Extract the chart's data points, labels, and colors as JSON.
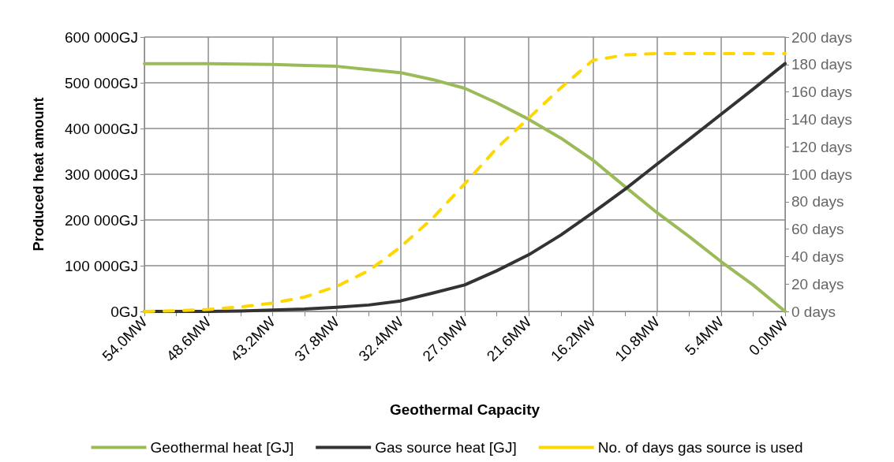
{
  "chart_data": {
    "type": "line",
    "xlabel": "Geothermal Capacity",
    "ylabel": "Produced heat amount",
    "categories": [
      "54.0MW",
      null,
      "48.6MW",
      null,
      "43.2MW",
      null,
      "37.8MW",
      null,
      "32.4MW",
      null,
      "27.0MW",
      null,
      "21.6MW",
      null,
      "16.2MW",
      null,
      "10.8MW",
      null,
      "5.4MW",
      null,
      "0.0MW"
    ],
    "series": [
      {
        "name": "Geothermal heat [GJ]",
        "color": "#9bbb59",
        "values": [
          542000,
          542000,
          542000,
          541000,
          540000,
          538000,
          536000,
          529000,
          522000,
          507000,
          488000,
          456000,
          420000,
          379000,
          331000,
          273000,
          216000,
          164000,
          109000,
          58000,
          0
        ]
      },
      {
        "name": "Gas source heat [GJ]",
        "color": "#333333",
        "values": [
          0,
          0,
          0,
          1000,
          3000,
          5000,
          9000,
          14000,
          23000,
          40000,
          58000,
          89000,
          124000,
          167000,
          216000,
          267000,
          322000,
          376000,
          431000,
          486000,
          542000
        ]
      },
      {
        "name": "No. of days gas source is used",
        "color": "#ffd700",
        "axis": "y2",
        "line_style": "dashed",
        "values": [
          0,
          0.5,
          1.5,
          3.3,
          6.1,
          10.5,
          18.2,
          29.7,
          47,
          68,
          93,
          119,
          141,
          163,
          183,
          187,
          188,
          188,
          188,
          188,
          188
        ]
      }
    ],
    "ylim": [
      0,
      600000
    ],
    "yticks": [
      {
        "value": 0,
        "label": "0GJ"
      },
      {
        "value": 100000,
        "label": "100 000GJ"
      },
      {
        "value": 200000,
        "label": "200 000GJ"
      },
      {
        "value": 300000,
        "label": "300 000GJ"
      },
      {
        "value": 400000,
        "label": "400 000GJ"
      },
      {
        "value": 500000,
        "label": "500 000GJ"
      },
      {
        "value": 600000,
        "label": "600 000GJ"
      }
    ],
    "y2lim": [
      0,
      200
    ],
    "y2ticks": [
      {
        "value": 0,
        "label": "0 days"
      },
      {
        "value": 20,
        "label": "20 days"
      },
      {
        "value": 40,
        "label": "40 days"
      },
      {
        "value": 60,
        "label": "60 days"
      },
      {
        "value": 80,
        "label": "80 days"
      },
      {
        "value": 100,
        "label": "100 days"
      },
      {
        "value": 120,
        "label": "120 days"
      },
      {
        "value": 140,
        "label": "140 days"
      },
      {
        "value": 160,
        "label": "160 days"
      },
      {
        "value": 180,
        "label": "180 days"
      },
      {
        "value": 200,
        "label": "200 days"
      }
    ],
    "grid": true,
    "legend": "bottom",
    "marker": "none",
    "line_style": "solid"
  }
}
